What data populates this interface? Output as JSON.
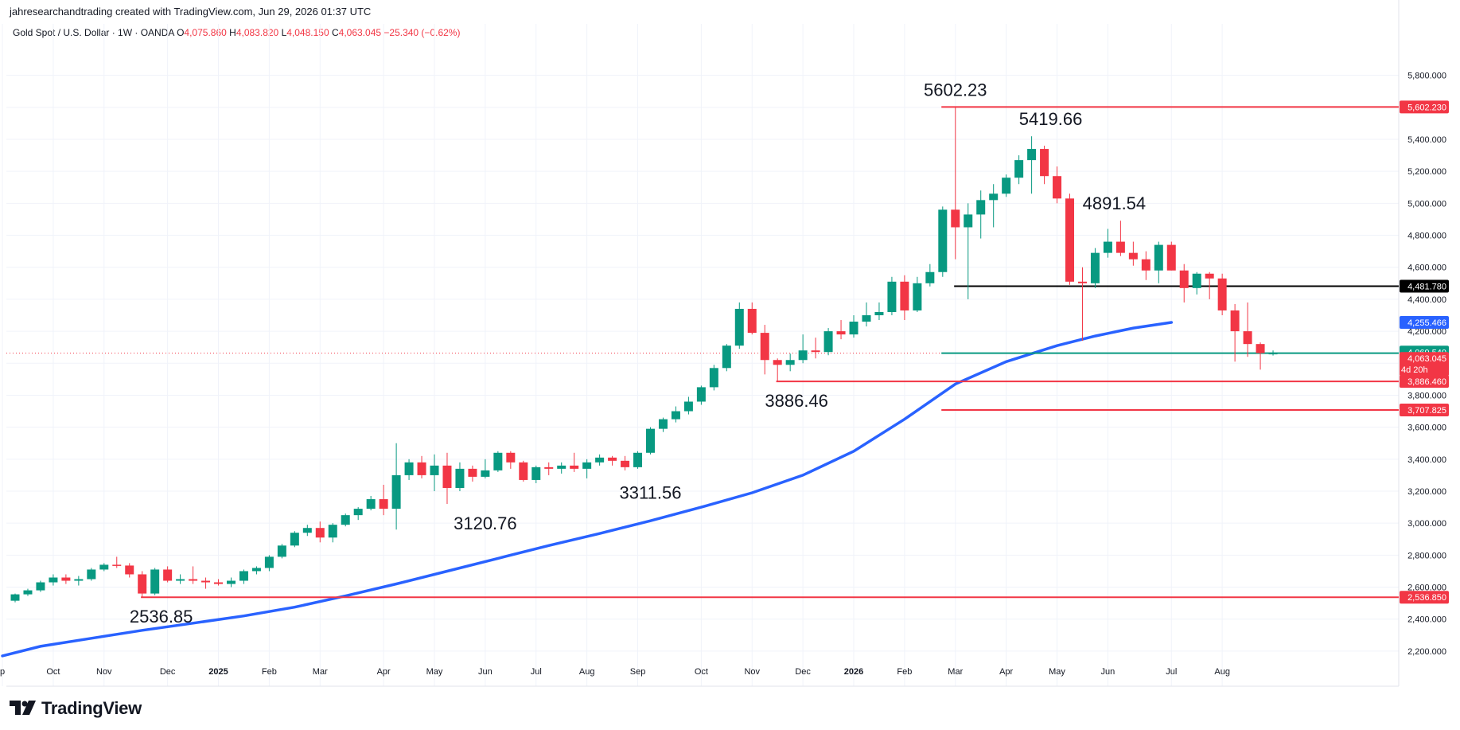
{
  "header": {
    "credit": "jahresearchandtrading created with TradingView.com, Jun 29, 2026 01:37 UTC",
    "symbol": "Gold Spot / U.S. Dollar · 1W · OANDA",
    "o_label": "O",
    "o_value": "4,075.860",
    "h_label": "H",
    "h_value": "4,083.820",
    "l_label": "L",
    "l_value": "4,048.150",
    "c_label": "C",
    "c_value": "4,063.045",
    "change": "−25.340 (−0.62%)"
  },
  "brand": {
    "name": "TradingView"
  },
  "colors": {
    "up": "#089981",
    "down": "#f23645",
    "ma": "#2962ff",
    "support_black": "#000000",
    "teal_line": "#089981",
    "grid": "#f0f3fa"
  },
  "chart_data": {
    "type": "candlestick",
    "ylim": [
      2100,
      5950
    ],
    "y_ticks": [
      "2,200.000",
      "2,400.000",
      "2,600.000",
      "2,800.000",
      "3,000.000",
      "3,200.000",
      "3,400.000",
      "3,600.000",
      "3,800.000",
      "4,000.000",
      "4,200.000",
      "4,400.000",
      "4,600.000",
      "4,800.000",
      "5,000.000",
      "5,200.000",
      "5,400.000",
      "5,600.000",
      "5,800.000"
    ],
    "x_ticks": [
      {
        "label": "p",
        "i": -1
      },
      {
        "label": "Oct",
        "i": 3
      },
      {
        "label": "Nov",
        "i": 7
      },
      {
        "label": "Dec",
        "i": 12
      },
      {
        "label": "2025",
        "i": 16,
        "bold": true
      },
      {
        "label": "Feb",
        "i": 20
      },
      {
        "label": "Mar",
        "i": 24
      },
      {
        "label": "Apr",
        "i": 29
      },
      {
        "label": "May",
        "i": 33
      },
      {
        "label": "Jun",
        "i": 37
      },
      {
        "label": "Jul",
        "i": 41
      },
      {
        "label": "Aug",
        "i": 45
      },
      {
        "label": "Sep",
        "i": 49
      },
      {
        "label": "Oct",
        "i": 54
      },
      {
        "label": "Nov",
        "i": 58
      },
      {
        "label": "Dec",
        "i": 62
      },
      {
        "label": "2026",
        "i": 66,
        "bold": true
      },
      {
        "label": "Feb",
        "i": 70
      },
      {
        "label": "Mar",
        "i": 74
      },
      {
        "label": "Apr",
        "i": 78
      },
      {
        "label": "May",
        "i": 82
      },
      {
        "label": "Jun",
        "i": 86
      },
      {
        "label": "Jul",
        "i": 91
      },
      {
        "label": "Aug",
        "i": 95
      }
    ],
    "candles": [
      [
        2515,
        2560,
        2505,
        2555
      ],
      [
        2555,
        2590,
        2545,
        2580
      ],
      [
        2580,
        2640,
        2570,
        2630
      ],
      [
        2630,
        2680,
        2610,
        2660
      ],
      [
        2660,
        2680,
        2620,
        2640
      ],
      [
        2640,
        2670,
        2610,
        2650
      ],
      [
        2650,
        2720,
        2640,
        2710
      ],
      [
        2710,
        2750,
        2700,
        2740
      ],
      [
        2740,
        2790,
        2720,
        2735
      ],
      [
        2735,
        2750,
        2660,
        2680
      ],
      [
        2680,
        2700,
        2536,
        2560
      ],
      [
        2560,
        2720,
        2550,
        2710
      ],
      [
        2710,
        2730,
        2630,
        2640
      ],
      [
        2640,
        2680,
        2620,
        2650
      ],
      [
        2650,
        2730,
        2620,
        2640
      ],
      [
        2640,
        2660,
        2590,
        2630
      ],
      [
        2630,
        2650,
        2610,
        2620
      ],
      [
        2620,
        2660,
        2600,
        2640
      ],
      [
        2640,
        2710,
        2620,
        2700
      ],
      [
        2700,
        2730,
        2680,
        2720
      ],
      [
        2720,
        2800,
        2700,
        2790
      ],
      [
        2790,
        2870,
        2780,
        2860
      ],
      [
        2860,
        2950,
        2850,
        2940
      ],
      [
        2940,
        2990,
        2920,
        2970
      ],
      [
        2970,
        3010,
        2880,
        2910
      ],
      [
        2910,
        3000,
        2880,
        2990
      ],
      [
        2990,
        3060,
        2980,
        3050
      ],
      [
        3050,
        3100,
        3020,
        3090
      ],
      [
        3090,
        3170,
        3080,
        3150
      ],
      [
        3150,
        3240,
        3050,
        3090
      ],
      [
        3090,
        3500,
        2960,
        3300
      ],
      [
        3300,
        3400,
        3270,
        3380
      ],
      [
        3380,
        3420,
        3280,
        3300
      ],
      [
        3300,
        3430,
        3200,
        3360
      ],
      [
        3360,
        3440,
        3120,
        3220
      ],
      [
        3220,
        3380,
        3200,
        3340
      ],
      [
        3340,
        3360,
        3260,
        3290
      ],
      [
        3290,
        3400,
        3280,
        3330
      ],
      [
        3330,
        3450,
        3320,
        3440
      ],
      [
        3440,
        3450,
        3340,
        3380
      ],
      [
        3380,
        3390,
        3260,
        3270
      ],
      [
        3270,
        3360,
        3250,
        3350
      ],
      [
        3350,
        3380,
        3300,
        3340
      ],
      [
        3340,
        3380,
        3310,
        3360
      ],
      [
        3360,
        3440,
        3320,
        3340
      ],
      [
        3340,
        3400,
        3280,
        3380
      ],
      [
        3380,
        3430,
        3360,
        3410
      ],
      [
        3410,
        3420,
        3360,
        3390
      ],
      [
        3390,
        3420,
        3330,
        3350
      ],
      [
        3350,
        3450,
        3340,
        3440
      ],
      [
        3440,
        3600,
        3430,
        3590
      ],
      [
        3590,
        3660,
        3570,
        3650
      ],
      [
        3650,
        3730,
        3630,
        3700
      ],
      [
        3700,
        3790,
        3680,
        3760
      ],
      [
        3760,
        3860,
        3740,
        3850
      ],
      [
        3850,
        3990,
        3830,
        3970
      ],
      [
        3970,
        4120,
        3950,
        4110
      ],
      [
        4110,
        4380,
        4090,
        4340
      ],
      [
        4340,
        4380,
        4180,
        4190
      ],
      [
        4190,
        4240,
        3930,
        4020
      ],
      [
        4020,
        4030,
        3886,
        3990
      ],
      [
        3990,
        4060,
        3950,
        4020
      ],
      [
        4020,
        4180,
        4000,
        4080
      ],
      [
        4080,
        4160,
        4030,
        4070
      ],
      [
        4070,
        4220,
        4050,
        4200
      ],
      [
        4200,
        4270,
        4150,
        4180
      ],
      [
        4180,
        4300,
        4160,
        4260
      ],
      [
        4260,
        4380,
        4230,
        4300
      ],
      [
        4300,
        4380,
        4270,
        4320
      ],
      [
        4320,
        4540,
        4300,
        4510
      ],
      [
        4510,
        4550,
        4270,
        4330
      ],
      [
        4330,
        4540,
        4320,
        4500
      ],
      [
        4500,
        4620,
        4480,
        4570
      ],
      [
        4570,
        4980,
        4540,
        4960
      ],
      [
        4960,
        5602,
        4650,
        4850
      ],
      [
        4850,
        5000,
        4400,
        4930
      ],
      [
        4930,
        5080,
        4780,
        5020
      ],
      [
        5020,
        5120,
        4850,
        5060
      ],
      [
        5060,
        5180,
        5040,
        5160
      ],
      [
        5160,
        5300,
        5120,
        5270
      ],
      [
        5270,
        5419,
        5060,
        5340
      ],
      [
        5340,
        5360,
        5120,
        5170
      ],
      [
        5170,
        5230,
        5000,
        5030
      ],
      [
        5030,
        5060,
        4490,
        4510
      ],
      [
        4510,
        4600,
        4140,
        4500
      ],
      [
        4500,
        4720,
        4470,
        4690
      ],
      [
        4690,
        4840,
        4660,
        4760
      ],
      [
        4760,
        4891,
        4670,
        4690
      ],
      [
        4690,
        4760,
        4610,
        4650
      ],
      [
        4650,
        4700,
        4520,
        4580
      ],
      [
        4580,
        4760,
        4500,
        4740
      ],
      [
        4740,
        4760,
        4580,
        4580
      ],
      [
        4580,
        4620,
        4380,
        4470
      ],
      [
        4470,
        4570,
        4430,
        4560
      ],
      [
        4560,
        4570,
        4400,
        4530
      ],
      [
        4530,
        4560,
        4300,
        4330
      ],
      [
        4330,
        4370,
        4010,
        4200
      ],
      [
        4200,
        4380,
        4040,
        4120
      ],
      [
        4120,
        4130,
        3960,
        4063
      ],
      [
        4063,
        4080,
        4048,
        4063
      ]
    ],
    "ma_name": "",
    "ma_values": [
      [
        -1,
        2170
      ],
      [
        2,
        2230
      ],
      [
        6,
        2280
      ],
      [
        10,
        2330
      ],
      [
        14,
        2375
      ],
      [
        18,
        2420
      ],
      [
        22,
        2475
      ],
      [
        26,
        2545
      ],
      [
        30,
        2620
      ],
      [
        34,
        2700
      ],
      [
        38,
        2780
      ],
      [
        42,
        2860
      ],
      [
        46,
        2935
      ],
      [
        50,
        3015
      ],
      [
        54,
        3100
      ],
      [
        58,
        3190
      ],
      [
        62,
        3300
      ],
      [
        66,
        3450
      ],
      [
        70,
        3650
      ],
      [
        74,
        3870
      ],
      [
        78,
        4010
      ],
      [
        82,
        4110
      ],
      [
        85,
        4170
      ],
      [
        88,
        4220
      ],
      [
        91,
        4255
      ]
    ],
    "level_lines": [
      {
        "value": 5602.23,
        "color": "#f23645",
        "from_i": 72.9,
        "label": "5,602.230"
      },
      {
        "value": 4481.78,
        "color": "#000000",
        "from_i": 73.9,
        "label": "4,481.780"
      },
      {
        "value": 4063.045,
        "color": "#089981",
        "from_i": 72.9,
        "label": ""
      },
      {
        "value": 3886.46,
        "color": "#f23645",
        "from_i": 59.9,
        "label": "3,886.460"
      },
      {
        "value": 3707.825,
        "color": "#f23645",
        "from_i": 72.9,
        "label": "3,707.825"
      },
      {
        "value": 2536.85,
        "color": "#f23645",
        "from_i": 9.9,
        "label": "2,536.850"
      }
    ],
    "price_labels": [
      {
        "value": 4255.466,
        "label": "4,255.466",
        "color": "#2962ff"
      },
      {
        "value": 4069.54,
        "label": "4,069.540",
        "color": "#089981"
      },
      {
        "value": 4030,
        "label": "4,063.045",
        "color": "#f23645",
        "sub": "4d 20h"
      }
    ],
    "current_price": 4063.045,
    "annotations": [
      {
        "text": "5602.23",
        "i": 74,
        "value": 5602.23
      },
      {
        "text": "5419.66",
        "i": 81.5,
        "value": 5419.66
      },
      {
        "text": "4891.54",
        "i": 86.5,
        "value": 4891.54
      },
      {
        "text": "3886.46",
        "i": 61.5,
        "value": 3886.46
      },
      {
        "text": "3311.56",
        "i": 50,
        "value": 3311.56
      },
      {
        "text": "3120.76",
        "i": 37,
        "value": 3120.76
      },
      {
        "text": "2536.85",
        "i": 11.5,
        "value": 2536.85
      }
    ]
  }
}
